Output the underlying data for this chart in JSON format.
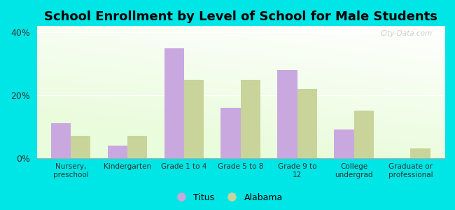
{
  "title": "School Enrollment by Level of School for Male Students",
  "categories": [
    "Nursery,\npreschool",
    "Kindergarten",
    "Grade 1 to 4",
    "Grade 5 to 8",
    "Grade 9 to\n12",
    "College\nundergrad",
    "Graduate or\nprofessional"
  ],
  "titus_values": [
    11,
    4,
    35,
    16,
    28,
    9,
    0
  ],
  "alabama_values": [
    7,
    7,
    25,
    25,
    22,
    15,
    3
  ],
  "titus_color": "#C9A8E0",
  "alabama_color": "#C8D49A",
  "background_color": "#00E5E5",
  "ylim": [
    0,
    42
  ],
  "yticks": [
    0,
    20,
    40
  ],
  "ytick_labels": [
    "0%",
    "20%",
    "40%"
  ],
  "legend_titus": "Titus",
  "legend_alabama": "Alabama",
  "title_fontsize": 13,
  "bar_width": 0.35,
  "watermark": "City-Data.com"
}
